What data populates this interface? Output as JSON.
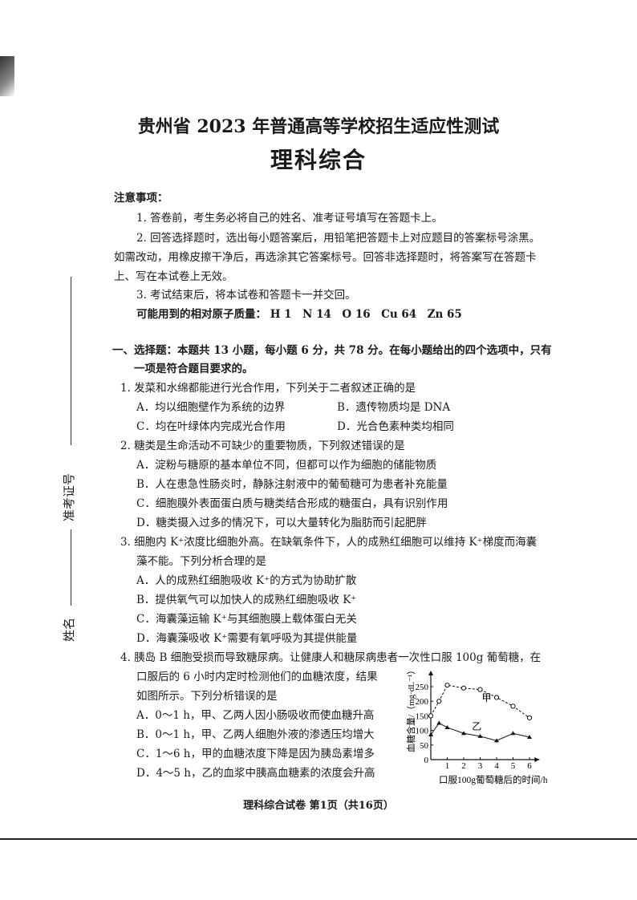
{
  "header": {
    "title": "贵州省 2023 年普通高等学校招生适应性测试",
    "subtitle": "理科综合"
  },
  "notes": {
    "heading": "注意事项：",
    "items": [
      "1. 答卷前，考生务必将自己的姓名、准考证号填写在答题卡上。",
      "2. 回答选择题时，选出每小题答案后，用铅笔把答题卡上对应题目的答案标号涂黑。",
      "如需改动，用橡皮擦干净后，再选涂其它答案标号。回答非选择题时，将答案写在答题卡",
      "上、写在本试卷上无效。",
      "3. 考试结束后，将本试卷和答题卡一并交回。"
    ],
    "atomic_mass": "可能用到的相对原子质量： H 1　N 14　O 16　Cu 64　Zn 65"
  },
  "section": {
    "line1": "一、选择题：本题共 13 小题，每小题 6 分，共 78 分。在每小题给出的四个选项中，只有",
    "line2": "一项是符合题目要求的。"
  },
  "questions": [
    {
      "stem": [
        "1. 发菜和水绵都能进行光合作用，下列关于二者叙述正确的是"
      ],
      "options": [
        "A．均以细胞壁作为系统的边界",
        "B．遗传物质均是 DNA",
        "C．均在叶绿体内完成光合作用",
        "D．光合色素种类均相同"
      ]
    },
    {
      "stem": [
        "2. 糖类是生命活动不可缺少的重要物质，下列叙述错误的是"
      ],
      "options": [
        "A．淀粉与糖原的基本单位不同，但都可以作为细胞的储能物质",
        "B．人在患急性肠炎时，静脉注射液中的葡萄糖可为患者补充能量",
        "C．细胞膜外表面蛋白质与糖类结合形成的糖蛋白，具有识别作用",
        "D．糖类摄入过多的情况下，可以大量转化为脂肪而引起肥胖"
      ]
    },
    {
      "stem": [
        "3. 细胞内 K⁺浓度比细胞外高。在缺氧条件下，人的成熟红细胞可以维持 K⁺梯度而海囊",
        "藻不能。下列分析合理的是"
      ],
      "options": [
        "A．人的成熟红细胞吸收 K⁺的方式为协助扩散",
        "B．提供氧气可以加快人的成熟红细胞吸收 K⁺",
        "C．海囊藻运输 K⁺与其细胞膜上载体蛋白无关",
        "D．海囊藻吸收 K⁺需要有氧呼吸为其提供能量"
      ]
    },
    {
      "stem": [
        "4. 胰岛 B 细胞受损而导致糖尿病。让健康人和糖尿病患者一次性口服 100g 葡萄糖，在",
        "口服后的 6 小时内定时检测他们的血糖浓度，结果",
        "如图所示。下列分析错误的是"
      ],
      "options": [
        "A．0～1 h，甲、乙两人因小肠吸收而使血糖升高",
        "B．0～1 h，甲、乙两人细胞外液的渗透压均增大",
        "C．1～6 h，甲的血糖浓度下降是因为胰岛素增多",
        "D．4～5 h，乙的血浆中胰高血糖素的浓度会升高"
      ]
    }
  ],
  "chart_data": {
    "type": "line",
    "xlabel": "口服100g葡萄糖后的时间/h",
    "ylabel": "血糖含量/（mg·dL⁻¹）",
    "xlim": [
      0,
      6.5
    ],
    "ylim": [
      0,
      300
    ],
    "xticks": [
      "1",
      "2",
      "3",
      "4",
      "5",
      "6"
    ],
    "yticks": [
      "0",
      "50",
      "100",
      "150",
      "200",
      "250"
    ],
    "x": [
      0,
      0.5,
      1,
      2,
      3,
      4,
      5,
      6
    ],
    "series": [
      {
        "name": "甲",
        "values": [
          150,
          200,
          255,
          245,
          240,
          213,
          183,
          143
        ],
        "style": "dashed-open-circle"
      },
      {
        "name": "乙",
        "values": [
          85,
          125,
          110,
          90,
          80,
          65,
          90,
          77
        ],
        "style": "solid-triangle"
      }
    ]
  },
  "footer": "理科综合试卷 第1页（共16页）",
  "margin": {
    "exam_id_label": "准考证号",
    "name_label": "姓名"
  }
}
